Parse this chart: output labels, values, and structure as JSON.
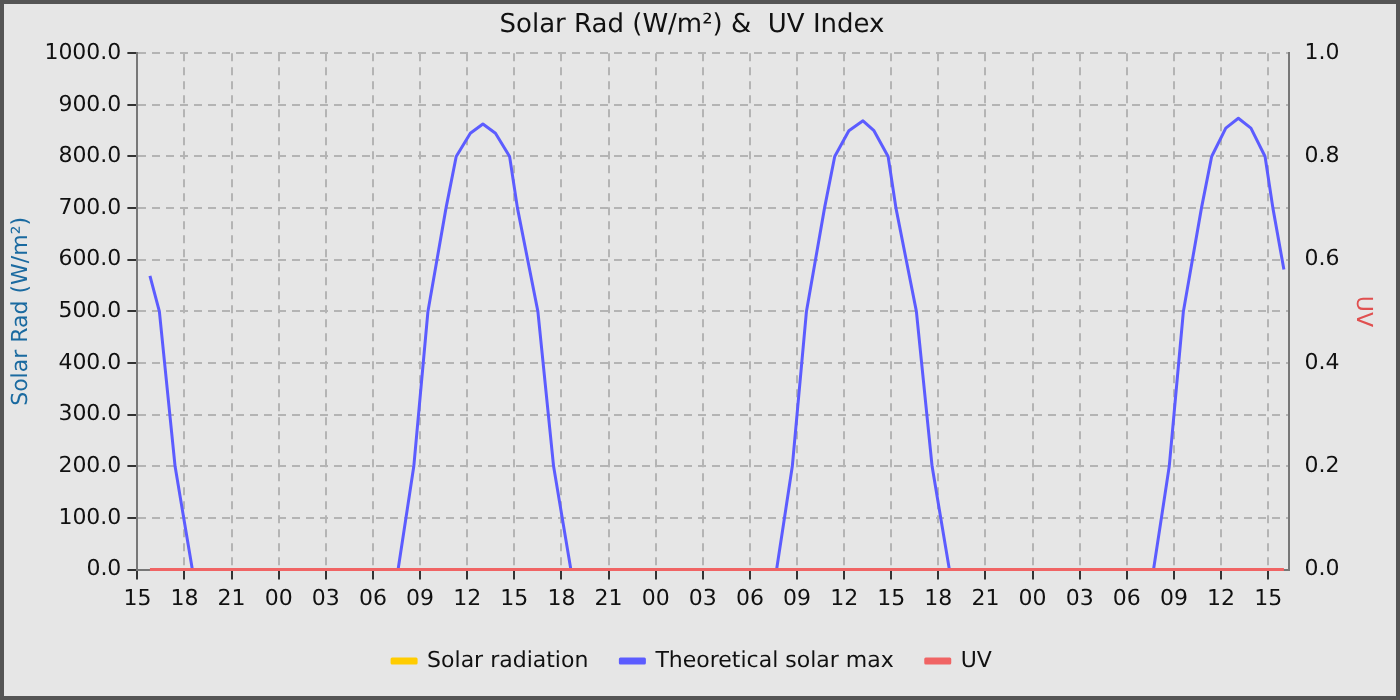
{
  "chart_data": {
    "type": "line",
    "title": "Solar Rad (W/m²) &  UV Index",
    "ylabel": "Solar Rad (W/m²)",
    "y2label": "UV",
    "xlim": [
      15,
      88.3
    ],
    "xticks": [
      {
        "value": 15,
        "label": "15"
      },
      {
        "value": 18,
        "label": "18"
      },
      {
        "value": 21,
        "label": "21"
      },
      {
        "value": 24,
        "label": "00"
      },
      {
        "value": 27,
        "label": "03"
      },
      {
        "value": 30,
        "label": "06"
      },
      {
        "value": 33,
        "label": "09"
      },
      {
        "value": 36,
        "label": "12"
      },
      {
        "value": 39,
        "label": "15"
      },
      {
        "value": 42,
        "label": "18"
      },
      {
        "value": 45,
        "label": "21"
      },
      {
        "value": 48,
        "label": "00"
      },
      {
        "value": 51,
        "label": "03"
      },
      {
        "value": 54,
        "label": "06"
      },
      {
        "value": 57,
        "label": "09"
      },
      {
        "value": 60,
        "label": "12"
      },
      {
        "value": 63,
        "label": "15"
      },
      {
        "value": 66,
        "label": "18"
      },
      {
        "value": 69,
        "label": "21"
      },
      {
        "value": 72,
        "label": "00"
      },
      {
        "value": 75,
        "label": "03"
      },
      {
        "value": 78,
        "label": "06"
      },
      {
        "value": 81,
        "label": "09"
      },
      {
        "value": 84,
        "label": "12"
      },
      {
        "value": 87,
        "label": "15"
      }
    ],
    "ylim": [
      0,
      1000
    ],
    "yticks": [
      {
        "value": 0,
        "label": "0.0"
      },
      {
        "value": 100,
        "label": "100.0"
      },
      {
        "value": 200,
        "label": "200.0"
      },
      {
        "value": 300,
        "label": "300.0"
      },
      {
        "value": 400,
        "label": "400.0"
      },
      {
        "value": 500,
        "label": "500.0"
      },
      {
        "value": 600,
        "label": "600.0"
      },
      {
        "value": 700,
        "label": "700.0"
      },
      {
        "value": 800,
        "label": "800.0"
      },
      {
        "value": 900,
        "label": "900.0"
      },
      {
        "value": 1000,
        "label": "1000.0"
      }
    ],
    "y2lim": [
      0,
      1
    ],
    "y2ticks": [
      {
        "value": 0,
        "label": "0.0"
      },
      {
        "value": 0.2,
        "label": "0.2"
      },
      {
        "value": 0.4,
        "label": "0.4"
      },
      {
        "value": 0.6,
        "label": "0.6"
      },
      {
        "value": 0.8,
        "label": "0.8"
      },
      {
        "value": 1,
        "label": "1.0"
      }
    ],
    "grid": true,
    "legend": "bottom",
    "marker": "none",
    "line_style": "solid",
    "series": [
      {
        "name": "Solar radiation",
        "color": "#ffcc00"
      },
      {
        "name": "Theoretical solar max",
        "color": "#5c5cff",
        "x": [
          15.8,
          16.4,
          17.4,
          18.5,
          31.6,
          32.6,
          33.5,
          34.65,
          35.3,
          36.2,
          37.0,
          37.8,
          38.7,
          39.2,
          40.5,
          41.5,
          42.6,
          55.7,
          56.7,
          57.6,
          58.75,
          59.4,
          60.3,
          61.2,
          61.9,
          62.8,
          63.3,
          64.6,
          65.6,
          66.7,
          79.7,
          80.7,
          81.6,
          82.75,
          83.4,
          84.3,
          85.1,
          85.9,
          86.8,
          87.3,
          88.0
        ],
        "values": [
          569,
          500,
          200,
          0,
          0,
          200,
          500,
          700,
          800,
          845,
          863,
          845,
          800,
          700,
          500,
          200,
          0,
          0,
          200,
          500,
          700,
          800,
          850,
          869,
          850,
          800,
          700,
          500,
          200,
          0,
          0,
          200,
          500,
          700,
          800,
          855,
          874,
          855,
          800,
          700,
          581
        ]
      },
      {
        "name": "UV",
        "color": "#f06464",
        "x": [
          15.8,
          88.0
        ],
        "values": [
          0,
          0
        ]
      }
    ]
  }
}
